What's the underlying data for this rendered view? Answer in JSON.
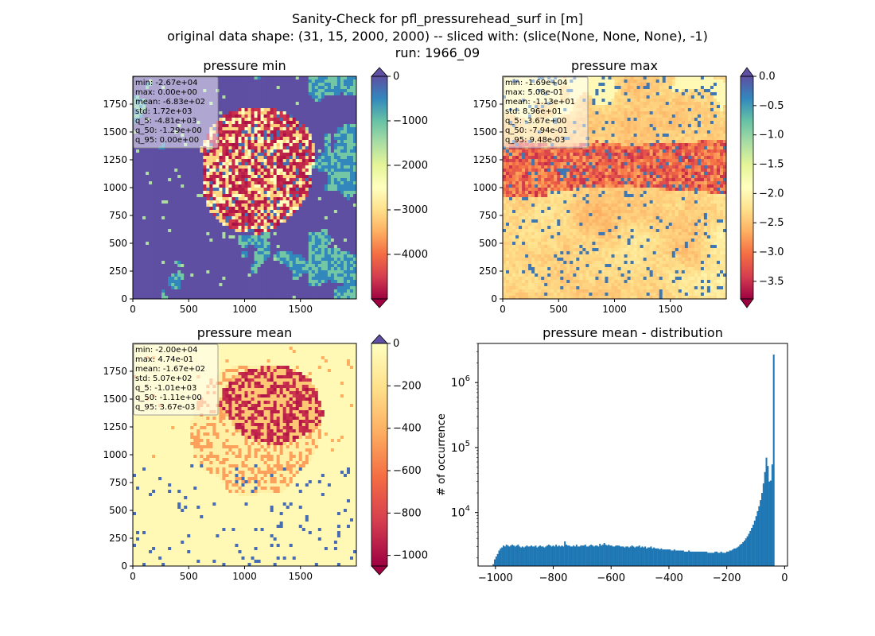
{
  "figure": {
    "title_lines": [
      "Sanity-Check for pfl_pressurehead_surf in [m]",
      "original data shape: (31, 15, 2000, 2000) -- sliced with: (slice(None, None, None), -1)",
      "run: 1966_09"
    ]
  },
  "chart_data": [
    {
      "type": "heatmap",
      "title": "pressure min",
      "colormap": "Spectral",
      "xlim": [
        0,
        2000
      ],
      "ylim": [
        0,
        2000
      ],
      "x_ticks": [
        0,
        500,
        1000,
        1500
      ],
      "y_ticks": [
        0,
        250,
        500,
        750,
        1000,
        1250,
        1500,
        1750
      ],
      "colorbar": {
        "range": [
          -5000,
          0
        ],
        "ticks": [
          0,
          -1000,
          -2000,
          -3000,
          -4000
        ],
        "tick_labels": [
          "0",
          "−1000",
          "−2000",
          "−3000",
          "−4000"
        ],
        "extend": "both"
      },
      "stats_lines": [
        "min: -2.67e+04",
        "max: 0.00e+00",
        "mean: -6.83e+02",
        "std: 1.72e+03",
        "q_5: -4.81e+03",
        "q_50: -1.29e+00",
        "q_95: 0.00e+00"
      ]
    },
    {
      "type": "heatmap",
      "title": "pressure max",
      "colormap": "Spectral",
      "xlim": [
        0,
        2000
      ],
      "ylim": [
        0,
        2000
      ],
      "x_ticks": [
        0,
        500,
        1000,
        1500
      ],
      "y_ticks": [
        0,
        250,
        500,
        750,
        1000,
        1250,
        1500,
        1750
      ],
      "colorbar": {
        "range": [
          -3.8,
          0
        ],
        "ticks": [
          0,
          -0.5,
          -1,
          -1.5,
          -2,
          -2.5,
          -3,
          -3.5
        ],
        "tick_labels": [
          "0.0",
          "−0.5",
          "−1.0",
          "−1.5",
          "−2.0",
          "−2.5",
          "−3.0",
          "−3.5"
        ],
        "extend": "both"
      },
      "stats_lines": [
        "min: -1.69e+04",
        "max: 5.08e-01",
        "mean: -1.13e+01",
        "std: 8.96e+01",
        "q_5: -3.67e+00",
        "q_50: -7.94e-01",
        "q_95: 9.48e-03"
      ]
    },
    {
      "type": "heatmap",
      "title": "pressure mean",
      "colormap": "Spectral",
      "xlim": [
        0,
        2000
      ],
      "ylim": [
        0,
        2000
      ],
      "x_ticks": [
        0,
        500,
        1000,
        1500
      ],
      "y_ticks": [
        0,
        250,
        500,
        750,
        1000,
        1250,
        1500,
        1750
      ],
      "colorbar": {
        "range": [
          -1050,
          0
        ],
        "ticks": [
          0,
          -200,
          -400,
          -600,
          -800,
          -1000
        ],
        "tick_labels": [
          "0",
          "−200",
          "−400",
          "−600",
          "−800",
          "−1000"
        ],
        "extend": "both"
      },
      "stats_lines": [
        "min: -2.00e+04",
        "max: 4.74e-01",
        "mean: -1.67e+02",
        "std: 5.07e+02",
        "q_5: -1.01e+03",
        "q_50: -1.11e+00",
        "q_95: 3.67e-03"
      ]
    },
    {
      "type": "bar",
      "title": "pressure mean - distribution",
      "xlabel": "",
      "ylabel": "# of occurrence",
      "yscale": "log",
      "xlim": [
        -1060,
        10
      ],
      "ylim": [
        1500,
        4000000
      ],
      "x_ticks": [
        -1000,
        -800,
        -600,
        -400,
        -200,
        0
      ],
      "x_tick_labels": [
        "−1000",
        "−800",
        "−600",
        "−400",
        "−200",
        "0"
      ],
      "y_ticks": [
        10000,
        100000,
        1000000
      ],
      "bar_color": "#1f77b4",
      "bins": {
        "start": -1010,
        "width": 5.05
      },
      "values": [
        1600,
        1900,
        2100,
        2300,
        2600,
        2800,
        2900,
        3100,
        3000,
        3200,
        3100,
        3000,
        3100,
        3200,
        3100,
        3000,
        3100,
        3200,
        3000,
        2900,
        3000,
        2900,
        3000,
        3100,
        3000,
        3000,
        3100,
        3000,
        3000,
        3100,
        2900,
        3000,
        3100,
        3000,
        3000,
        2900,
        3000,
        3100,
        3200,
        3100,
        3000,
        3100,
        3000,
        3200,
        3000,
        3100,
        3000,
        3100,
        3000,
        3600,
        3200,
        3100,
        3100,
        3000,
        3000,
        3100,
        3000,
        3200,
        3000,
        3000,
        3100,
        3100,
        3100,
        3200,
        3000,
        3000,
        3100,
        3200,
        3100,
        3000,
        3100,
        3100,
        3000,
        3300,
        3100,
        3200,
        3400,
        3200,
        3100,
        3200,
        3100,
        3100,
        3000,
        3000,
        3100,
        3100,
        3100,
        3000,
        3000,
        3000,
        2900,
        3000,
        3000,
        2900,
        3000,
        3100,
        3000,
        2900,
        3000,
        3000,
        3100,
        2900,
        3000,
        2900,
        3000,
        2800,
        2900,
        2900,
        3000,
        2800,
        2900,
        2800,
        2800,
        2800,
        2700,
        2800,
        2700,
        2700,
        2700,
        2700,
        2700,
        2700,
        2600,
        2600,
        2700,
        2600,
        2600,
        2600,
        2600,
        2600,
        2600,
        2500,
        2500,
        2500,
        2600,
        2500,
        2500,
        2500,
        2500,
        2500,
        2500,
        2500,
        2500,
        2500,
        2500,
        2500,
        2500,
        2400,
        2400,
        2400,
        2400,
        2400,
        2500,
        2500,
        2400,
        2400,
        2500,
        2400,
        2400,
        2400,
        2500,
        2500,
        2600,
        2600,
        2700,
        2800,
        2800,
        2900,
        3000,
        3200,
        3300,
        3500,
        3700,
        4000,
        4300,
        4700,
        5200,
        5800,
        6500,
        7500,
        8800,
        10500,
        12500,
        15500,
        20000,
        28000,
        42000,
        70000,
        52000,
        30000,
        31000,
        55000,
        2700000
      ]
    }
  ]
}
